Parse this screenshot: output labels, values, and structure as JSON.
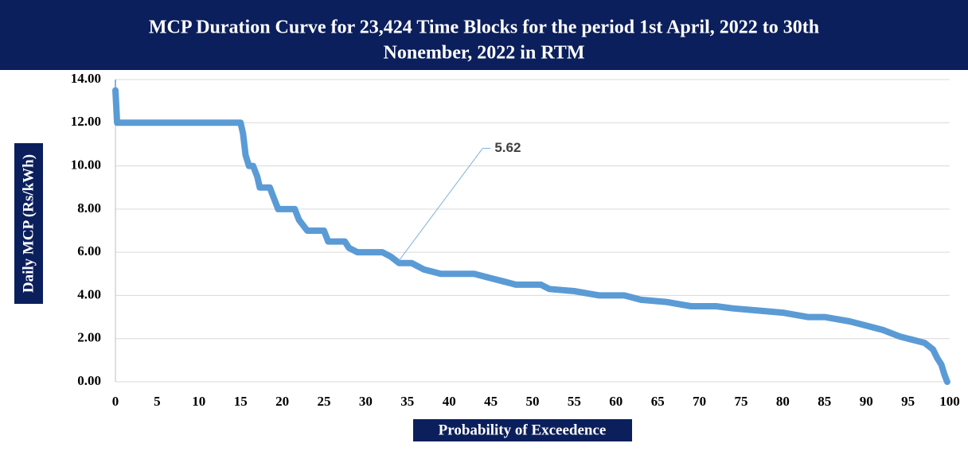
{
  "chart_data": {
    "type": "line",
    "title": "MCP Duration Curve for 23,424 Time Blocks for the period 1st April, 2022 to 30th",
    "subtitle": "Nonember, 2022  in RTM",
    "y_label": "Daily MCP (Rs/kWh)",
    "x_label": "Probability of Exceedence",
    "color": "#5b9bd5",
    "grid": true,
    "x": [
      0,
      0.2,
      15,
      15.3,
      15.6,
      16,
      16.5,
      17,
      17.3,
      18,
      18.5,
      19,
      19.5,
      21,
      21.5,
      22,
      23,
      25,
      25.5,
      27.5,
      28,
      29,
      32,
      33,
      34,
      35.5,
      37,
      39,
      43,
      45,
      47,
      48,
      51,
      52,
      55,
      58,
      61,
      63,
      66,
      69,
      72,
      74,
      77,
      80,
      83,
      85,
      88,
      90,
      92,
      94,
      95,
      96,
      97,
      98,
      98.5,
      99,
      99.4,
      99.7
    ],
    "values": [
      13.5,
      12,
      12,
      11.5,
      10.5,
      10,
      10,
      9.5,
      9,
      9,
      9,
      8.5,
      8,
      8,
      8,
      7.5,
      7,
      7,
      6.5,
      6.5,
      6.2,
      6,
      6,
      5.8,
      5.5,
      5.5,
      5.2,
      5,
      5,
      4.8,
      4.6,
      4.5,
      4.5,
      4.3,
      4.2,
      4,
      4,
      3.8,
      3.7,
      3.5,
      3.5,
      3.4,
      3.3,
      3.2,
      3,
      3,
      2.8,
      2.6,
      2.4,
      2.1,
      2,
      1.9,
      1.8,
      1.5,
      1.1,
      0.8,
      0.3,
      0
    ],
    "annotations": [
      {
        "label": "5.62",
        "x": 34,
        "y": 5.62
      }
    ],
    "xlim": [
      0,
      100
    ],
    "xticks": [
      0,
      5,
      10,
      15,
      20,
      25,
      30,
      35,
      40,
      45,
      50,
      55,
      60,
      65,
      70,
      75,
      80,
      85,
      90,
      95,
      100
    ],
    "ylim": [
      0,
      14
    ],
    "yticks": [
      {
        "value": 0,
        "label": "0.00"
      },
      {
        "value": 2,
        "label": "2.00"
      },
      {
        "value": 4,
        "label": "4.00"
      },
      {
        "value": 6,
        "label": "6.00"
      },
      {
        "value": 8,
        "label": "8.00"
      },
      {
        "value": 10,
        "label": "10.00"
      },
      {
        "value": 12,
        "label": "12.00"
      },
      {
        "value": 14,
        "label": "14.00"
      }
    ]
  }
}
